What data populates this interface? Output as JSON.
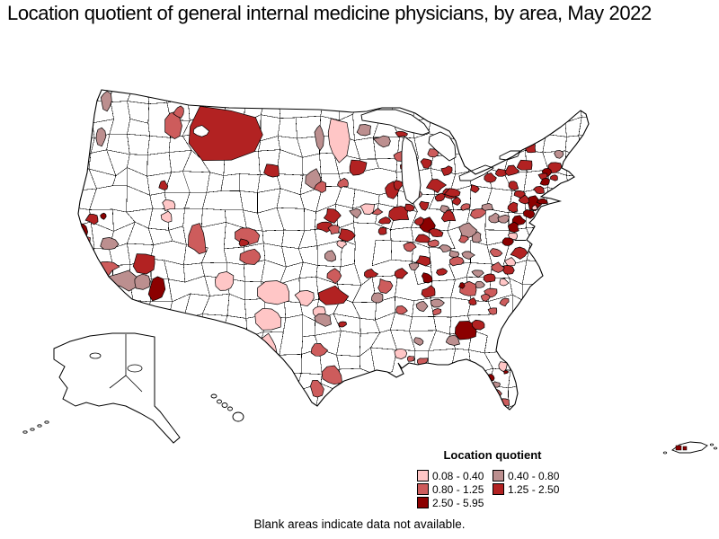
{
  "title": "Location quotient of general internal medicine physicians, by area, May 2022",
  "footer_note": "Blank areas indicate data not available.",
  "legend": {
    "title": "Location quotient",
    "classes": [
      {
        "label": "0.08 - 0.40",
        "color": "#FFC6C6"
      },
      {
        "label": "0.40 - 0.80",
        "color": "#BC8F8F"
      },
      {
        "label": "0.80 - 1.25",
        "color": "#CD5C5C"
      },
      {
        "label": "1.25 - 2.50",
        "color": "#B22222"
      },
      {
        "label": "2.50 - 5.95",
        "color": "#8B0000"
      }
    ]
  },
  "chart_data": {
    "type": "choropleth_map",
    "title": "Location quotient of general internal medicine physicians, by area, May 2022",
    "legend_title": "Location quotient",
    "classes": [
      "0.08 - 0.40",
      "0.40 - 0.80",
      "0.80 - 1.25",
      "1.25 - 2.50",
      "2.50 - 5.95"
    ],
    "class_colors": [
      "#FFC6C6",
      "#BC8F8F",
      "#CD5C5C",
      "#B22222",
      "#8B0000"
    ],
    "no_data_note": "Blank areas indicate data not available.",
    "region_format": "[cx, cy, rx, ry, class] — class 1..5 indexes legend classes, 0 = no data (white)",
    "regions": [
      [
        118,
        112,
        6,
        10,
        2
      ],
      [
        112,
        152,
        6,
        9,
        2
      ],
      [
        103,
        243,
        8,
        6,
        4
      ],
      [
        93,
        258,
        4,
        9,
        5
      ],
      [
        97,
        269,
        4,
        6,
        3
      ],
      [
        120,
        272,
        10,
        7,
        2
      ],
      [
        118,
        297,
        12,
        8,
        3
      ],
      [
        140,
        312,
        16,
        10,
        2
      ],
      [
        107,
        307,
        6,
        8,
        3
      ],
      [
        115,
        241,
        3,
        3,
        5
      ],
      [
        182,
        207,
        5,
        5,
        4
      ],
      [
        188,
        228,
        7,
        6,
        1
      ],
      [
        186,
        242,
        6,
        6,
        1
      ],
      [
        220,
        268,
        10,
        16,
        3
      ],
      [
        193,
        140,
        9,
        18,
        3
      ],
      [
        200,
        124,
        6,
        6,
        3
      ],
      [
        250,
        150,
        45,
        30,
        4
      ],
      [
        223,
        146,
        9,
        6,
        0
      ],
      [
        302,
        190,
        10,
        8,
        4
      ],
      [
        160,
        293,
        13,
        10,
        4
      ],
      [
        174,
        322,
        8,
        14,
        5
      ],
      [
        157,
        313,
        10,
        8,
        2
      ],
      [
        275,
        262,
        12,
        9,
        3
      ],
      [
        271,
        270,
        5,
        4,
        4
      ],
      [
        281,
        286,
        12,
        8,
        3
      ],
      [
        250,
        315,
        11,
        11,
        1
      ],
      [
        305,
        325,
        20,
        14,
        1
      ],
      [
        300,
        355,
        16,
        14,
        1
      ],
      [
        296,
        385,
        13,
        12,
        1
      ],
      [
        340,
        332,
        10,
        8,
        1
      ],
      [
        354,
        347,
        8,
        7,
        1
      ],
      [
        371,
        307,
        8,
        7,
        3
      ],
      [
        360,
        356,
        9,
        6,
        2
      ],
      [
        381,
        361,
        4,
        3,
        4
      ],
      [
        370,
        330,
        14,
        10,
        4
      ],
      [
        355,
        390,
        8,
        7,
        3
      ],
      [
        370,
        418,
        11,
        10,
        3
      ],
      [
        352,
        433,
        7,
        9,
        3
      ],
      [
        445,
        393,
        8,
        6,
        1
      ],
      [
        375,
        155,
        12,
        24,
        1
      ],
      [
        355,
        152,
        5,
        13,
        2
      ],
      [
        405,
        145,
        8,
        6,
        2
      ],
      [
        398,
        188,
        11,
        9,
        4
      ],
      [
        382,
        204,
        6,
        5,
        3
      ],
      [
        350,
        200,
        9,
        10,
        2
      ],
      [
        357,
        208,
        7,
        6,
        3
      ],
      [
        370,
        240,
        9,
        7,
        4
      ],
      [
        410,
        232,
        8,
        6,
        1
      ],
      [
        396,
        237,
        6,
        5,
        2
      ],
      [
        362,
        252,
        8,
        6,
        4
      ],
      [
        385,
        262,
        9,
        7,
        4
      ],
      [
        372,
        256,
        6,
        5,
        3
      ],
      [
        368,
        285,
        7,
        6,
        2
      ],
      [
        380,
        272,
        5,
        4,
        1
      ],
      [
        412,
        305,
        7,
        5,
        4
      ],
      [
        428,
        318,
        8,
        7,
        3
      ],
      [
        420,
        332,
        6,
        5,
        2
      ],
      [
        425,
        157,
        8,
        6,
        2
      ],
      [
        447,
        149,
        6,
        3,
        4
      ],
      [
        445,
        175,
        7,
        6,
        3
      ],
      [
        452,
        186,
        6,
        5,
        4
      ],
      [
        436,
        212,
        8,
        8,
        4
      ],
      [
        443,
        206,
        5,
        5,
        4
      ],
      [
        444,
        238,
        11,
        8,
        4
      ],
      [
        420,
        236,
        5,
        4,
        3
      ],
      [
        428,
        246,
        6,
        4,
        4
      ],
      [
        426,
        257,
        5,
        4,
        4
      ],
      [
        475,
        182,
        6,
        5,
        4
      ],
      [
        482,
        170,
        6,
        4,
        3
      ],
      [
        498,
        190,
        6,
        5,
        4
      ],
      [
        485,
        206,
        9,
        7,
        4
      ],
      [
        500,
        215,
        8,
        6,
        4
      ],
      [
        465,
        216,
        4,
        4,
        2
      ],
      [
        455,
        231,
        6,
        4,
        4
      ],
      [
        472,
        229,
        6,
        5,
        4
      ],
      [
        476,
        251,
        10,
        8,
        5
      ],
      [
        467,
        246,
        5,
        4,
        4
      ],
      [
        485,
        259,
        7,
        5,
        4
      ],
      [
        456,
        275,
        6,
        5,
        3
      ],
      [
        470,
        266,
        7,
        5,
        4
      ],
      [
        483,
        271,
        6,
        4,
        3
      ],
      [
        504,
        214,
        8,
        5,
        4
      ],
      [
        490,
        220,
        6,
        4,
        4
      ],
      [
        508,
        224,
        5,
        4,
        4
      ],
      [
        499,
        241,
        8,
        6,
        4
      ],
      [
        494,
        232,
        5,
        4,
        2
      ],
      [
        518,
        230,
        5,
        4,
        3
      ],
      [
        520,
        256,
        9,
        7,
        2
      ],
      [
        530,
        264,
        6,
        5,
        2
      ],
      [
        516,
        266,
        5,
        4,
        3
      ],
      [
        533,
        237,
        8,
        6,
        3
      ],
      [
        543,
        230,
        6,
        4,
        2
      ],
      [
        550,
        243,
        6,
        5,
        2
      ],
      [
        528,
        210,
        5,
        4,
        4
      ],
      [
        545,
        198,
        7,
        5,
        4
      ],
      [
        558,
        192,
        6,
        4,
        4
      ],
      [
        570,
        190,
        7,
        5,
        4
      ],
      [
        584,
        184,
        8,
        6,
        4
      ],
      [
        571,
        206,
        6,
        5,
        4
      ],
      [
        590,
        165,
        7,
        6,
        4
      ],
      [
        622,
        172,
        5,
        4,
        2
      ],
      [
        617,
        186,
        8,
        6,
        4
      ],
      [
        609,
        192,
        5,
        4,
        5
      ],
      [
        604,
        196,
        5,
        4,
        4
      ],
      [
        607,
        203,
        5,
        4,
        5
      ],
      [
        600,
        212,
        6,
        4,
        4
      ],
      [
        617,
        198,
        4,
        3,
        4
      ],
      [
        594,
        226,
        8,
        7,
        5
      ],
      [
        604,
        224,
        6,
        3,
        5
      ],
      [
        583,
        222,
        6,
        4,
        4
      ],
      [
        570,
        231,
        6,
        5,
        4
      ],
      [
        578,
        216,
        6,
        4,
        4
      ],
      [
        589,
        238,
        6,
        5,
        5
      ],
      [
        595,
        231,
        3,
        3,
        1
      ],
      [
        577,
        246,
        7,
        5,
        5
      ],
      [
        571,
        253,
        7,
        5,
        5
      ],
      [
        561,
        244,
        6,
        4,
        2
      ],
      [
        570,
        263,
        5,
        4,
        1
      ],
      [
        577,
        281,
        8,
        6,
        4
      ],
      [
        565,
        269,
        5,
        4,
        5
      ],
      [
        568,
        292,
        6,
        5,
        1
      ],
      [
        552,
        282,
        6,
        5,
        3
      ],
      [
        565,
        301,
        6,
        5,
        4
      ],
      [
        553,
        298,
        7,
        5,
        3
      ],
      [
        545,
        309,
        6,
        5,
        4
      ],
      [
        531,
        304,
        6,
        4,
        2
      ],
      [
        560,
        315,
        5,
        4,
        1
      ],
      [
        546,
        326,
        7,
        5,
        3
      ],
      [
        561,
        336,
        5,
        4,
        3
      ],
      [
        534,
        317,
        6,
        4,
        2
      ],
      [
        520,
        323,
        10,
        8,
        3
      ],
      [
        514,
        318,
        3,
        3,
        5
      ],
      [
        540,
        331,
        5,
        4,
        3
      ],
      [
        526,
        336,
        5,
        4,
        4
      ],
      [
        548,
        346,
        5,
        4,
        3
      ],
      [
        519,
        368,
        13,
        10,
        5
      ],
      [
        533,
        361,
        7,
        5,
        4
      ],
      [
        504,
        379,
        8,
        5,
        2
      ],
      [
        475,
        309,
        6,
        5,
        5
      ],
      [
        478,
        325,
        8,
        6,
        4
      ],
      [
        487,
        337,
        7,
        5,
        2
      ],
      [
        470,
        341,
        6,
        5,
        2
      ],
      [
        486,
        347,
        6,
        4,
        3
      ],
      [
        470,
        402,
        6,
        4,
        3
      ],
      [
        446,
        346,
        7,
        5,
        3
      ],
      [
        466,
        380,
        6,
        4,
        2
      ],
      [
        457,
        399,
        4,
        3,
        3
      ],
      [
        446,
        304,
        7,
        5,
        4
      ],
      [
        472,
        290,
        8,
        5,
        4
      ],
      [
        492,
        302,
        6,
        4,
        4
      ],
      [
        508,
        291,
        7,
        5,
        3
      ],
      [
        521,
        284,
        6,
        4,
        2
      ],
      [
        461,
        296,
        5,
        4,
        2
      ],
      [
        496,
        277,
        6,
        4,
        2
      ],
      [
        505,
        283,
        6,
        4,
        2
      ],
      [
        560,
        408,
        5,
        5,
        1
      ],
      [
        546,
        421,
        4,
        4,
        5
      ],
      [
        553,
        428,
        4,
        3,
        2
      ],
      [
        551,
        438,
        6,
        6,
        3
      ],
      [
        563,
        414,
        3,
        2,
        5
      ],
      [
        562,
        448,
        5,
        4,
        3
      ]
    ]
  }
}
